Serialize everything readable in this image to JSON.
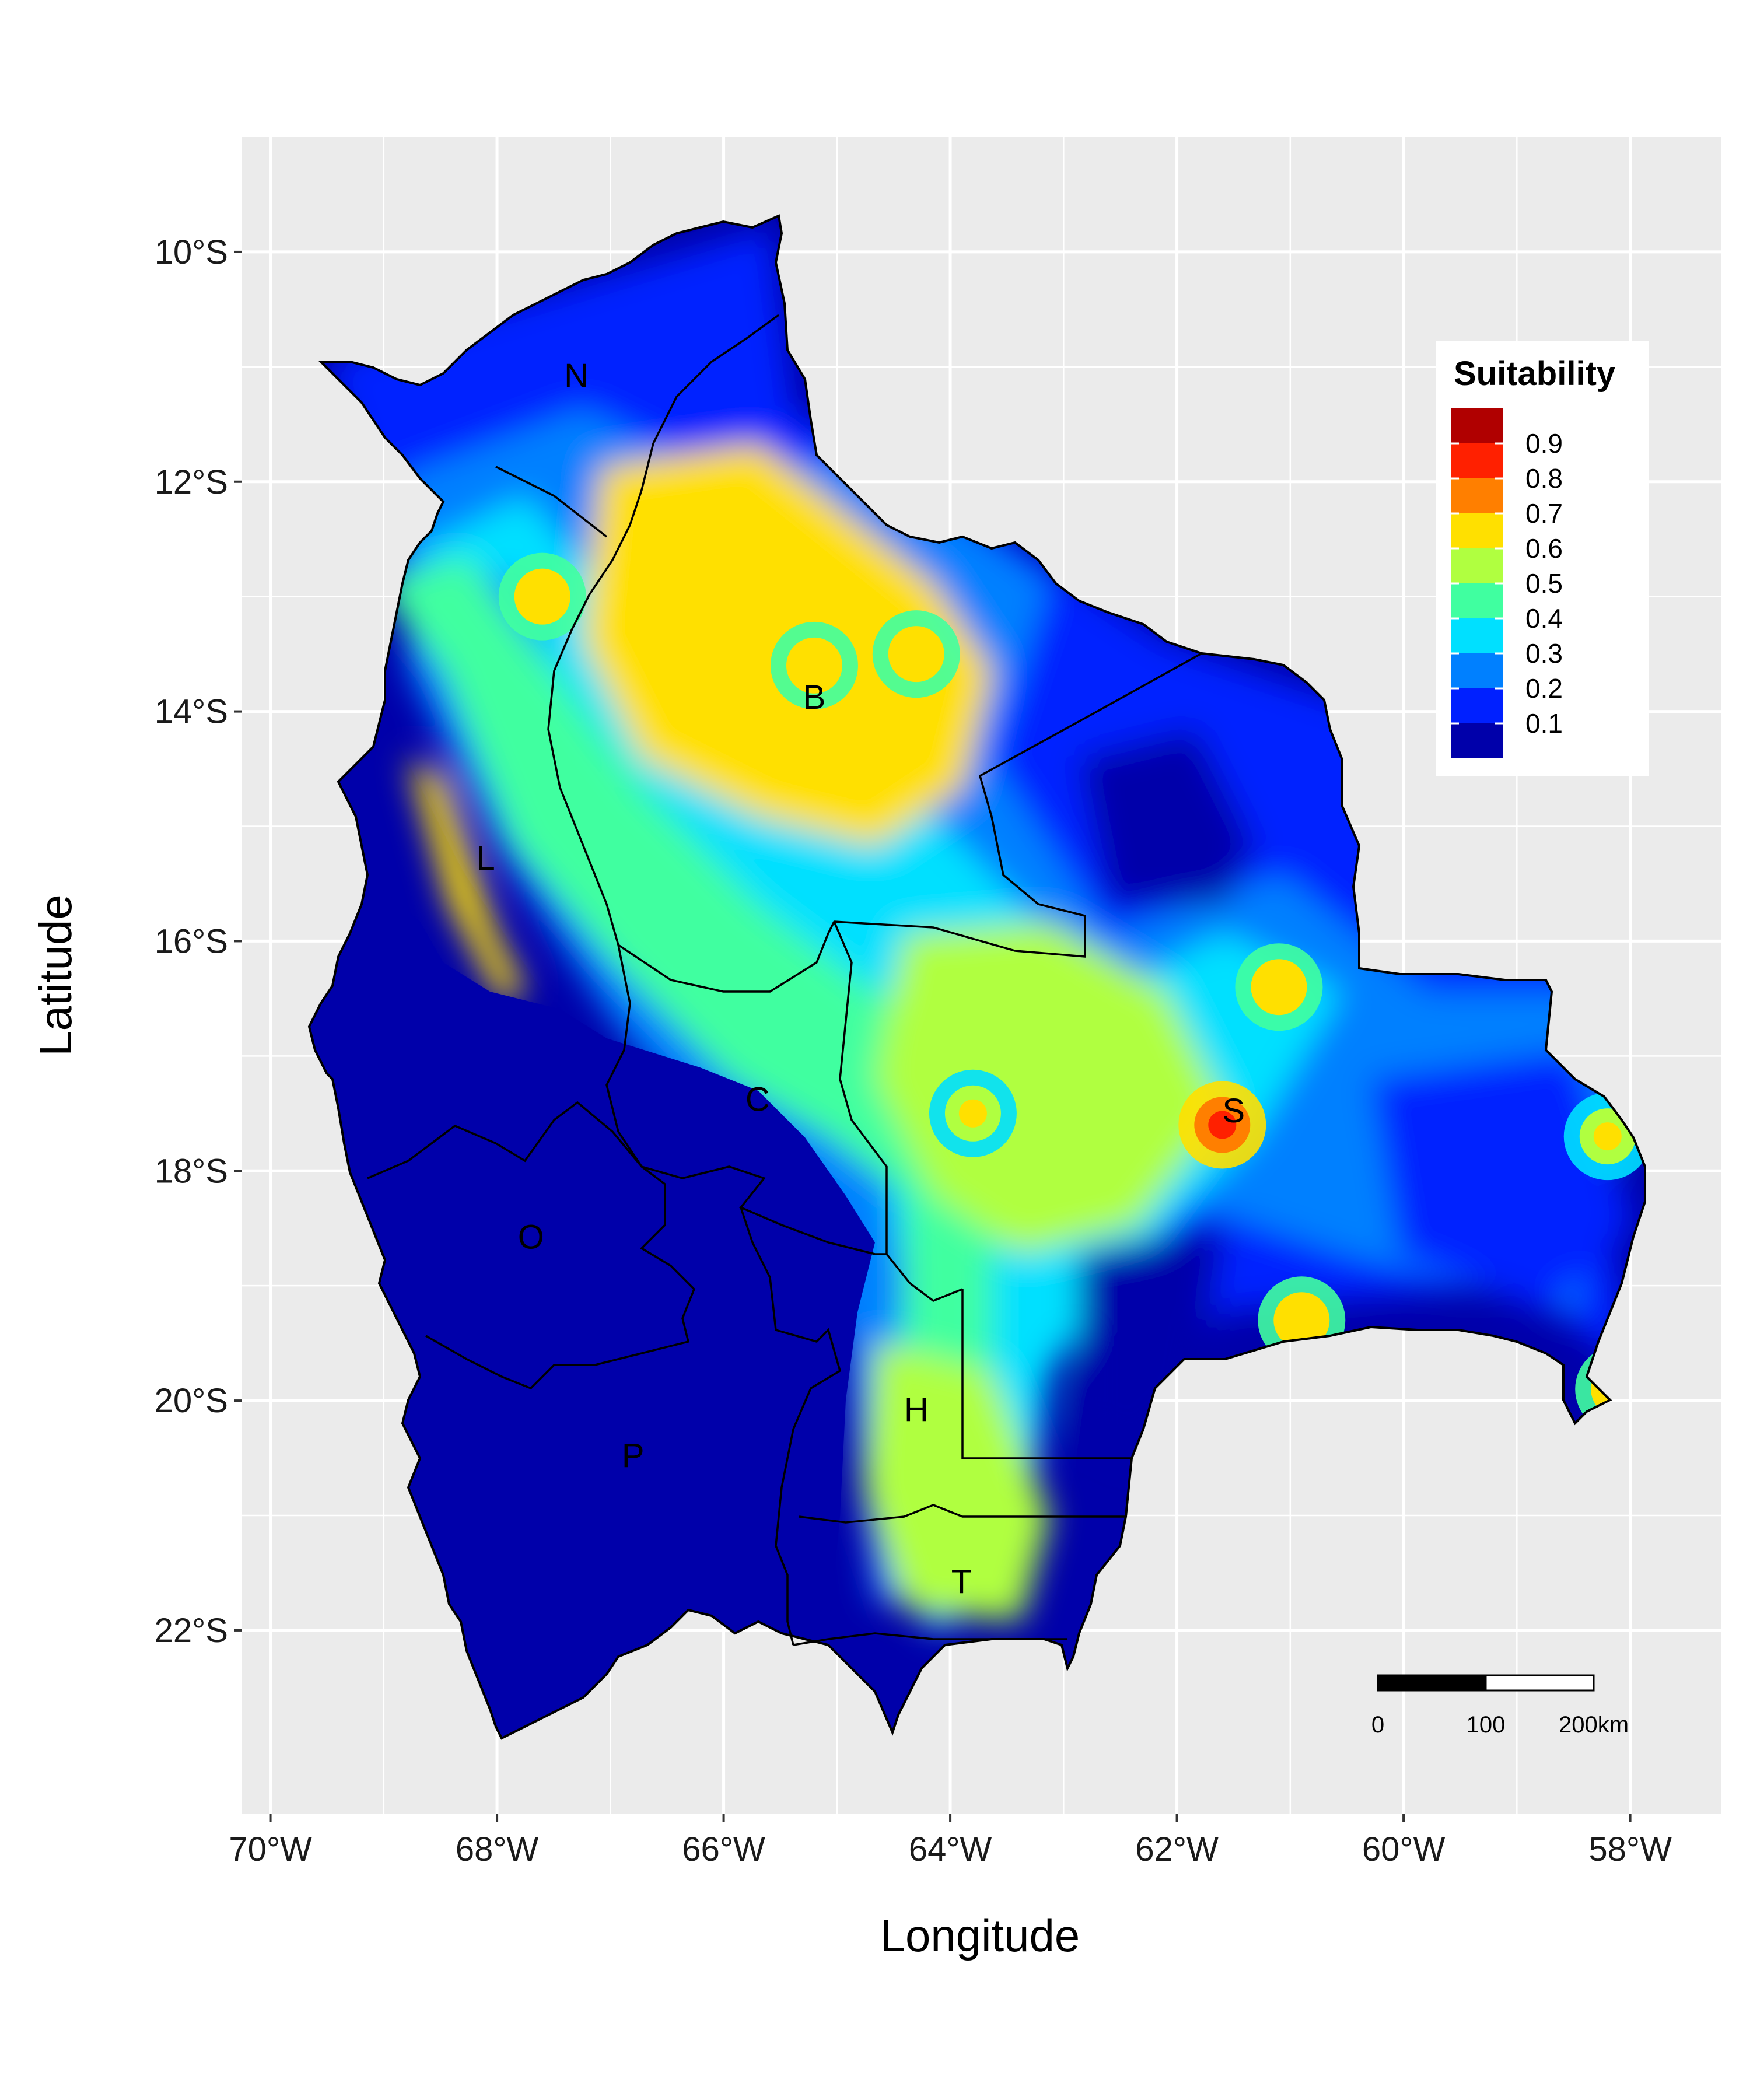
{
  "map": {
    "x_axis_title": "Longitude",
    "y_axis_title": "Latitude",
    "x_ticks": [
      "70°W",
      "68°W",
      "66°W",
      "64°W",
      "62°W",
      "60°W",
      "58°W"
    ],
    "y_ticks": [
      "10°S",
      "12°S",
      "14°S",
      "16°S",
      "18°S",
      "20°S",
      "22°S"
    ],
    "x_tick_values": [
      -70,
      -68,
      -66,
      -64,
      -62,
      -60,
      -58
    ],
    "y_tick_values": [
      -10,
      -12,
      -14,
      -16,
      -18,
      -20,
      -22
    ],
    "lon_range": [
      -70.25,
      -57.2
    ],
    "lat_range": [
      -9.0,
      -23.6
    ],
    "panel_background": "#ebebeb",
    "grid_color": "#ffffff",
    "region_labels": [
      {
        "text": "N",
        "lon": -67.3,
        "lat": -11.1
      },
      {
        "text": "B",
        "lon": -65.2,
        "lat": -13.9
      },
      {
        "text": "L",
        "lon": -68.1,
        "lat": -15.3
      },
      {
        "text": "C",
        "lon": -65.7,
        "lat": -17.4
      },
      {
        "text": "S",
        "lon": -61.5,
        "lat": -17.5
      },
      {
        "text": "O",
        "lon": -67.7,
        "lat": -18.6
      },
      {
        "text": "P",
        "lon": -66.8,
        "lat": -20.5
      },
      {
        "text": "H",
        "lon": -64.3,
        "lat": -20.1
      },
      {
        "text": "T",
        "lon": -63.9,
        "lat": -21.6
      }
    ],
    "suitability_hotspots": [
      {
        "lon": -65.2,
        "lat": -13.6,
        "value": 0.7
      },
      {
        "lon": -64.3,
        "lat": -13.5,
        "value": 0.7
      },
      {
        "lon": -67.6,
        "lat": -13.0,
        "value": 0.7
      },
      {
        "lon": -61.6,
        "lat": -17.6,
        "value": 0.8
      },
      {
        "lon": -61.1,
        "lat": -16.4,
        "value": 0.7
      },
      {
        "lon": -60.9,
        "lat": -19.3,
        "value": 0.7
      },
      {
        "lon": -63.8,
        "lat": -17.5,
        "value": 0.6
      },
      {
        "lon": -58.1,
        "lat": -19.9,
        "value": 0.7
      },
      {
        "lon": -58.2,
        "lat": -17.7,
        "value": 0.6
      }
    ]
  },
  "legend": {
    "title": "Suitability",
    "labels": [
      "0.9",
      "0.8",
      "0.7",
      "0.6",
      "0.5",
      "0.4",
      "0.3",
      "0.2",
      "0.1"
    ],
    "colors": [
      "#b00000",
      "#ff2000",
      "#ff7f00",
      "#ffe000",
      "#b0ff40",
      "#40ffa0",
      "#00e0ff",
      "#0080ff",
      "#0020ff",
      "#0000aa"
    ]
  },
  "scale_bar": {
    "label_0": "0",
    "label_1": "100",
    "label_2": "200km"
  }
}
